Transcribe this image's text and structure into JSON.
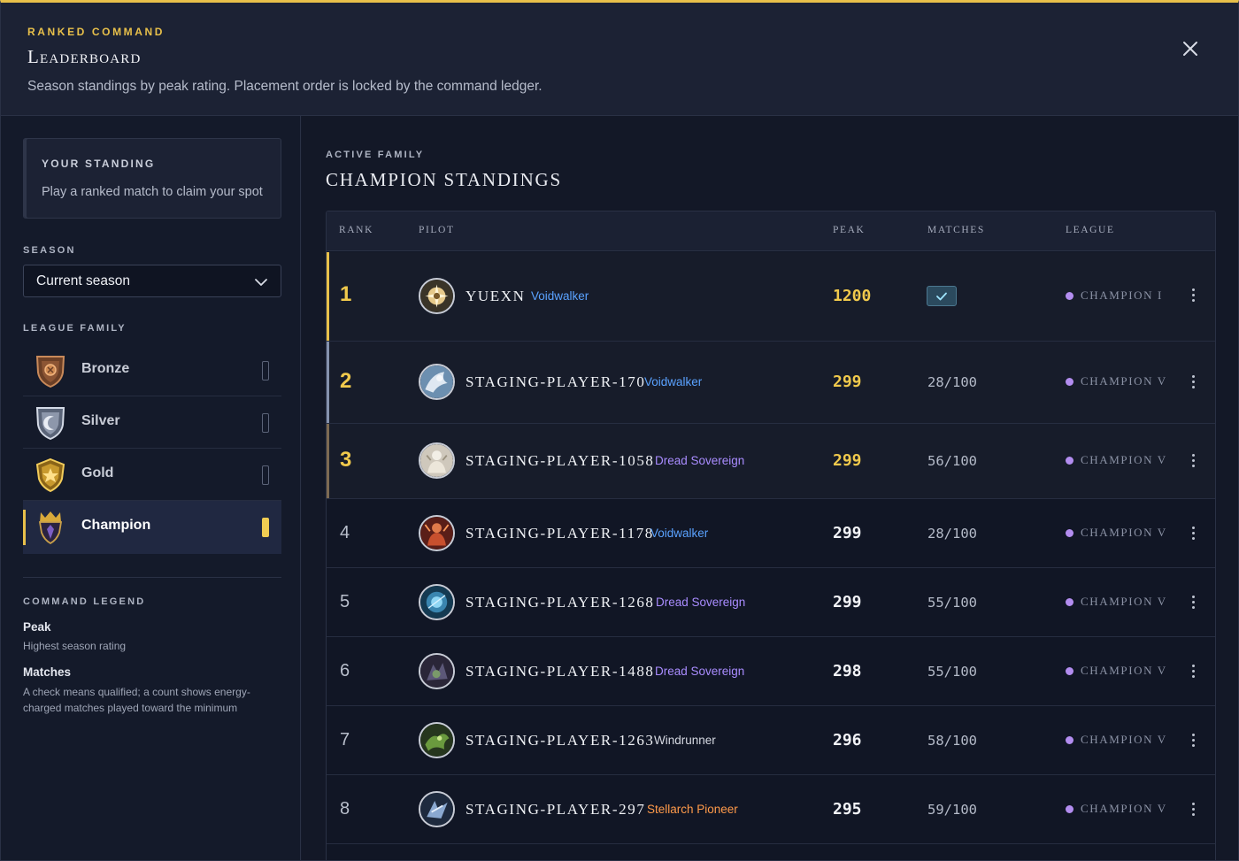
{
  "header": {
    "eyebrow": "RANKED COMMAND",
    "title": "Leaderboard",
    "subtitle": "Season standings by peak rating. Placement order is locked by the command ledger."
  },
  "sidebar": {
    "standing": {
      "label": "YOUR STANDING",
      "text": "Play a ranked match to claim your spot"
    },
    "season_label": "SEASON",
    "season_value": "Current season",
    "league_family_label": "LEAGUE FAMILY",
    "families": [
      {
        "name": "Bronze",
        "icon": "bronze-shield-icon",
        "active": false
      },
      {
        "name": "Silver",
        "icon": "silver-shield-icon",
        "active": false
      },
      {
        "name": "Gold",
        "icon": "gold-shield-icon",
        "active": false
      },
      {
        "name": "Champion",
        "icon": "champion-crest-icon",
        "active": true
      }
    ],
    "legend": {
      "label": "COMMAND LEGEND",
      "peak_term": "Peak",
      "peak_desc": "Highest season rating",
      "matches_term": "Matches",
      "matches_desc": "A check means qualified; a count shows energy-charged matches played toward the minimum"
    }
  },
  "main": {
    "eyebrow": "ACTIVE FAMILY",
    "title": "CHAMPION STANDINGS",
    "columns": {
      "rank": "RANK",
      "pilot": "PILOT",
      "peak": "PEAK",
      "matches": "MATCHES",
      "league": "LEAGUE"
    },
    "rows": [
      {
        "rank": "1",
        "name": "Yuexn",
        "tag": "Voidwalker",
        "peak": "1200",
        "matches": "",
        "qualified": true,
        "league": "CHAMPION I"
      },
      {
        "rank": "2",
        "name": "Staging-Player-170",
        "tag": "Voidwalker",
        "peak": "299",
        "matches": "28/100",
        "qualified": false,
        "league": "CHAMPION V"
      },
      {
        "rank": "3",
        "name": "Staging-Player-1058",
        "tag": "Dread Sovereign",
        "peak": "299",
        "matches": "56/100",
        "qualified": false,
        "league": "CHAMPION V"
      },
      {
        "rank": "4",
        "name": "Staging-Player-1178",
        "tag": "Voidwalker",
        "peak": "299",
        "matches": "28/100",
        "qualified": false,
        "league": "CHAMPION V"
      },
      {
        "rank": "5",
        "name": "Staging-Player-1268",
        "tag": "Dread Sovereign",
        "peak": "299",
        "matches": "55/100",
        "qualified": false,
        "league": "CHAMPION V"
      },
      {
        "rank": "6",
        "name": "Staging-Player-1488",
        "tag": "Dread Sovereign",
        "peak": "298",
        "matches": "55/100",
        "qualified": false,
        "league": "CHAMPION V"
      },
      {
        "rank": "7",
        "name": "Staging-Player-1263",
        "tag": "Windrunner",
        "peak": "296",
        "matches": "58/100",
        "qualified": false,
        "league": "CHAMPION V"
      },
      {
        "rank": "8",
        "name": "Staging-Player-297",
        "tag": "Stellarch Pioneer",
        "peak": "295",
        "matches": "59/100",
        "qualified": false,
        "league": "CHAMPION V"
      }
    ]
  },
  "colors": {
    "accent": "#e8c04a",
    "voidwalker": "#5aa2ff",
    "dread_sovereign": "#a98cff",
    "windrunner": "#d6d9e2",
    "stellarch_pioneer": "#ff9a4a",
    "league_dot": "#b38df0",
    "silver_accent": "#8592ad",
    "bronze_accent": "#7d6a52"
  }
}
